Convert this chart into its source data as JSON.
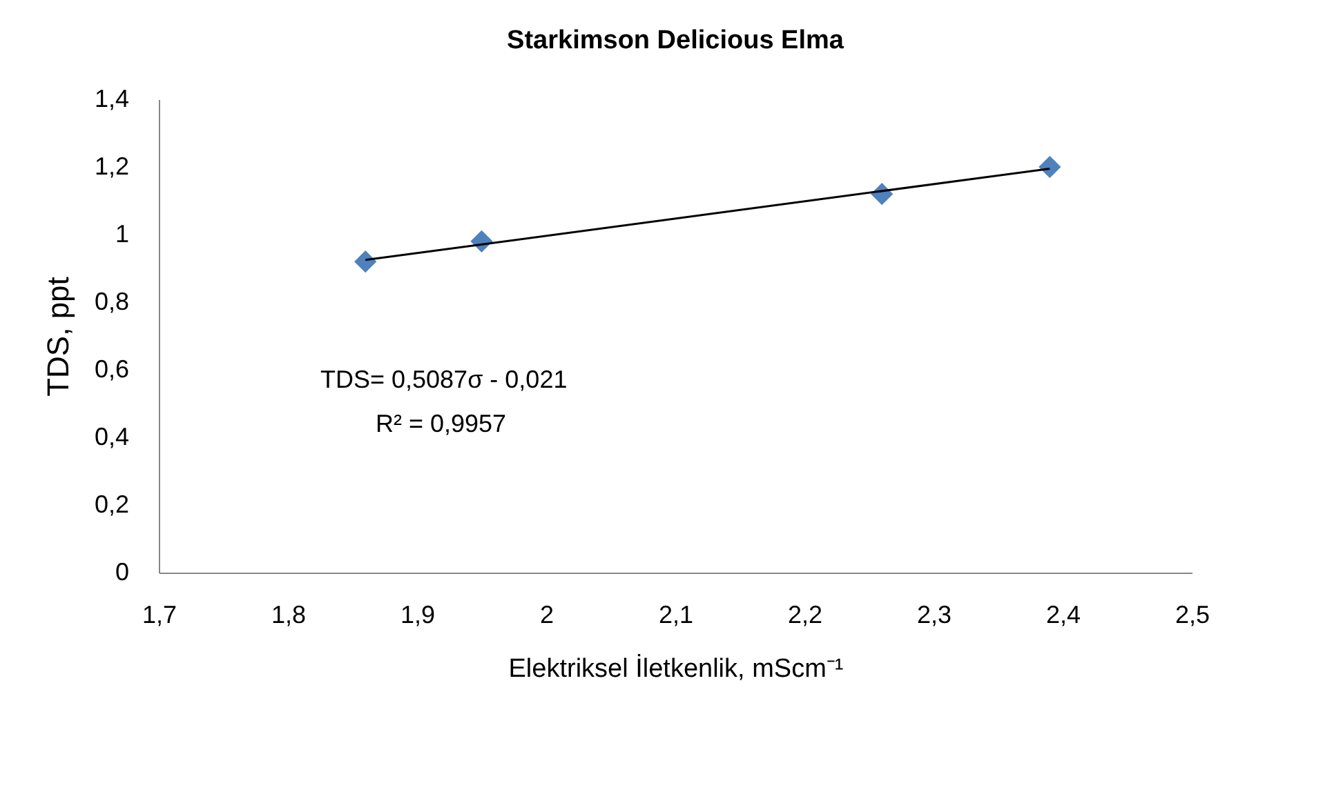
{
  "chart_data": {
    "type": "scatter",
    "title": "Starkimson Delicious Elma",
    "xlabel": "Elektriksel İletkenlik, mScm⁻¹",
    "ylabel": "TDS, ppt",
    "x": [
      1.86,
      1.95,
      2.26,
      2.39
    ],
    "series": [
      {
        "color": "#4f81bd",
        "marker": "diamond",
        "values": [
          0.92,
          0.98,
          1.12,
          1.2
        ]
      },
      {
        "type": "line",
        "color": "#000000",
        "marker": "none",
        "x": [
          1.86,
          2.39
        ],
        "values": [
          0.925,
          1.195
        ]
      }
    ],
    "xlim": [
      1.7,
      2.5
    ],
    "xticks": [
      {
        "value": 1.7,
        "label": "1,7"
      },
      {
        "value": 1.8,
        "label": "1,8"
      },
      {
        "value": 1.9,
        "label": "1,9"
      },
      2,
      {
        "value": 2.1,
        "label": "2,1"
      },
      {
        "value": 2.2,
        "label": "2,2"
      },
      {
        "value": 2.3,
        "label": "2,3"
      },
      {
        "value": 2.4,
        "label": "2,4"
      },
      {
        "value": 2.5,
        "label": "2,5"
      }
    ],
    "ylim": [
      0,
      1.4
    ],
    "yticks": [
      0,
      {
        "value": 0.2,
        "label": "0,2"
      },
      {
        "value": 0.4,
        "label": "0,4"
      },
      {
        "value": 0.6,
        "label": "0,6"
      },
      {
        "value": 0.8,
        "label": "0,8"
      },
      1,
      {
        "value": 1.2,
        "label": "1,2"
      },
      {
        "value": 1.4,
        "label": "1,4"
      }
    ],
    "annotations": [
      "TDS= 0,5087σ - 0,021",
      "R² = 0,9957"
    ],
    "grid": false
  }
}
